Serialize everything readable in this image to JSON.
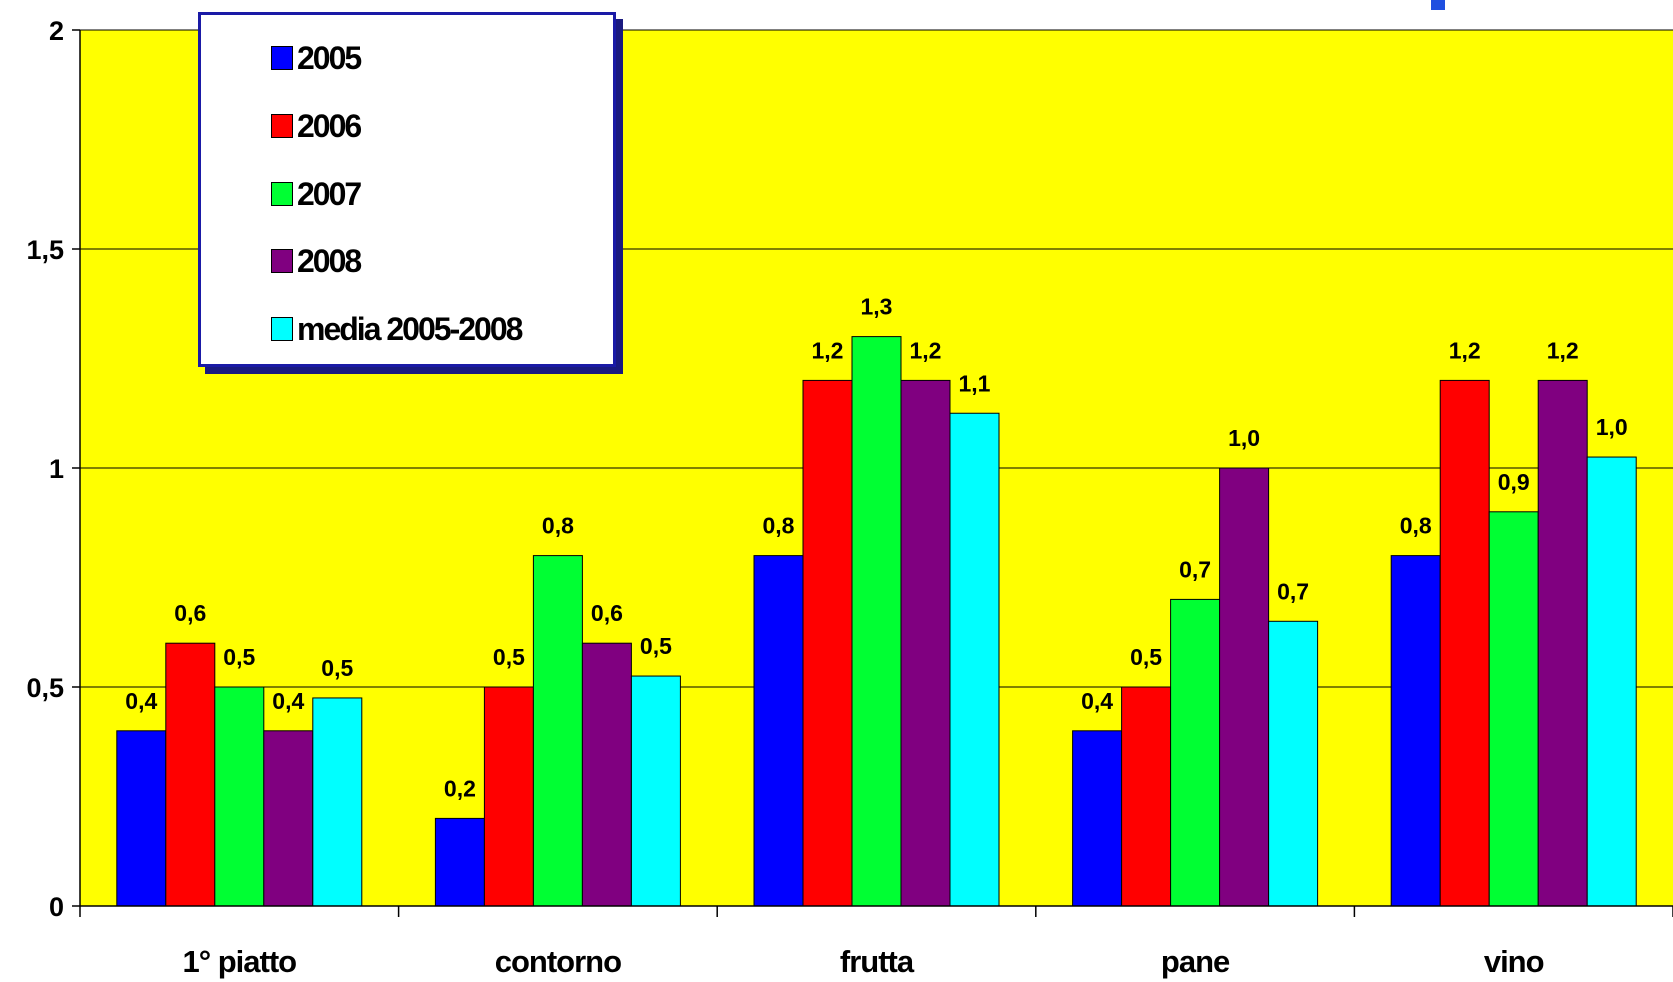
{
  "chart_data": {
    "type": "bar",
    "title": "",
    "xlabel": "",
    "ylabel": "",
    "ylim": [
      0,
      2
    ],
    "y_ticks": [
      {
        "value": 0,
        "label": "0"
      },
      {
        "value": 0.5,
        "label": "0,5"
      },
      {
        "value": 1,
        "label": "1"
      },
      {
        "value": 1.5,
        "label": "1,5"
      },
      {
        "value": 2,
        "label": "2"
      }
    ],
    "categories": [
      "1° piatto",
      "contorno",
      "frutta",
      "pane",
      "vino"
    ],
    "series": [
      {
        "name": "2005",
        "color": "#0000ff",
        "values": [
          0.4,
          0.2,
          0.8,
          0.4,
          0.8
        ],
        "labels": [
          "0,4",
          "0,2",
          "0,8",
          "0,4",
          "0,8"
        ]
      },
      {
        "name": "2006",
        "color": "#ff0000",
        "values": [
          0.6,
          0.5,
          1.2,
          0.5,
          1.2
        ],
        "labels": [
          "0,6",
          "0,5",
          "1,2",
          "0,5",
          "1,2"
        ]
      },
      {
        "name": "2007",
        "color": "#00ff33",
        "values": [
          0.5,
          0.8,
          1.3,
          0.7,
          0.9
        ],
        "labels": [
          "0,5",
          "0,8",
          "1,3",
          "0,7",
          "0,9"
        ]
      },
      {
        "name": "2008",
        "color": "#800080",
        "values": [
          0.4,
          0.6,
          1.2,
          1.0,
          1.2
        ],
        "labels": [
          "0,4",
          "0,6",
          "1,2",
          "1,0",
          "1,2"
        ]
      },
      {
        "name": "media 2005-2008",
        "color": "#00ffff",
        "values": [
          0.475,
          0.525,
          1.125,
          0.65,
          1.025
        ],
        "labels": [
          "0,5",
          "0,5",
          "1,1",
          "0,7",
          "1,0"
        ]
      }
    ],
    "plot_background": "#ffff00",
    "gridlines": true,
    "legend_position": "top-left"
  }
}
